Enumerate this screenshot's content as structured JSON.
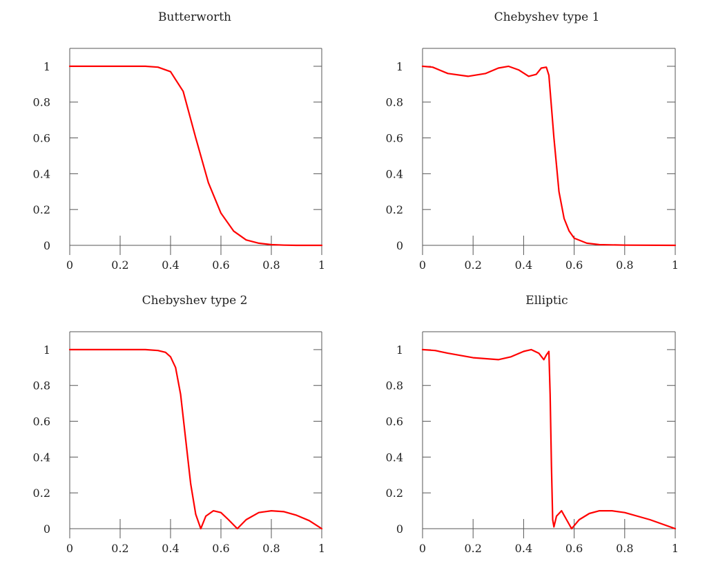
{
  "colors": {
    "line": "#ff0000",
    "axis": "#555555",
    "background": "#ffffff",
    "text": "#222222"
  },
  "chart_data": [
    {
      "type": "line",
      "title": "Butterworth",
      "xlabel": "",
      "ylabel": "",
      "xlim": [
        0,
        1
      ],
      "ylim": [
        0,
        1.1
      ],
      "xticks": [
        0,
        0.2,
        0.4,
        0.6,
        0.8,
        1
      ],
      "xtick_labels": [
        "0",
        "0.2",
        "0.4",
        "0.6",
        "0.8",
        "1"
      ],
      "yticks": [
        0,
        0.2,
        0.4,
        0.6,
        0.8,
        1
      ],
      "ytick_labels": [
        "0",
        "0.2",
        "0.4",
        "0.6",
        "0.8",
        "1"
      ],
      "grid": false,
      "series": [
        {
          "name": "Butterworth",
          "x": [
            0,
            0.1,
            0.2,
            0.3,
            0.35,
            0.4,
            0.45,
            0.5,
            0.55,
            0.6,
            0.65,
            0.7,
            0.75,
            0.8,
            0.85,
            0.9,
            1
          ],
          "y": [
            1,
            1,
            1,
            1,
            0.995,
            0.97,
            0.86,
            0.6,
            0.35,
            0.18,
            0.08,
            0.03,
            0.012,
            0.004,
            0.001,
            0,
            0
          ]
        }
      ]
    },
    {
      "type": "line",
      "title": "Chebyshev type 1",
      "xlabel": "",
      "ylabel": "",
      "xlim": [
        0,
        1
      ],
      "ylim": [
        0,
        1.1
      ],
      "xticks": [
        0,
        0.2,
        0.4,
        0.6,
        0.8,
        1
      ],
      "xtick_labels": [
        "0",
        "0.2",
        "0.4",
        "0.6",
        "0.8",
        "1"
      ],
      "yticks": [
        0,
        0.2,
        0.4,
        0.6,
        0.8,
        1
      ],
      "ytick_labels": [
        "0",
        "0.2",
        "0.4",
        "0.6",
        "0.8",
        "1"
      ],
      "grid": false,
      "series": [
        {
          "name": "Chebyshev type 1",
          "x": [
            0,
            0.04,
            0.1,
            0.18,
            0.25,
            0.3,
            0.34,
            0.38,
            0.42,
            0.45,
            0.47,
            0.49,
            0.5,
            0.52,
            0.54,
            0.56,
            0.58,
            0.6,
            0.65,
            0.7,
            0.8,
            1
          ],
          "y": [
            1,
            0.995,
            0.96,
            0.944,
            0.96,
            0.99,
            1.0,
            0.98,
            0.944,
            0.955,
            0.99,
            0.995,
            0.95,
            0.6,
            0.3,
            0.15,
            0.08,
            0.04,
            0.012,
            0.004,
            0.001,
            0
          ]
        }
      ]
    },
    {
      "type": "line",
      "title": "Chebyshev type 2",
      "xlabel": "",
      "ylabel": "",
      "xlim": [
        0,
        1
      ],
      "ylim": [
        0,
        1.1
      ],
      "xticks": [
        0,
        0.2,
        0.4,
        0.6,
        0.8,
        1
      ],
      "xtick_labels": [
        "0",
        "0.2",
        "0.4",
        "0.6",
        "0.8",
        "1"
      ],
      "yticks": [
        0,
        0.2,
        0.4,
        0.6,
        0.8,
        1
      ],
      "ytick_labels": [
        "0",
        "0.2",
        "0.4",
        "0.6",
        "0.8",
        "1"
      ],
      "grid": false,
      "series": [
        {
          "name": "Chebyshev type 2",
          "x": [
            0,
            0.1,
            0.2,
            0.3,
            0.35,
            0.38,
            0.4,
            0.42,
            0.44,
            0.46,
            0.48,
            0.5,
            0.52,
            0.54,
            0.57,
            0.6,
            0.63,
            0.665,
            0.7,
            0.75,
            0.8,
            0.85,
            0.9,
            0.95,
            1
          ],
          "y": [
            1,
            1,
            1,
            1,
            0.995,
            0.985,
            0.96,
            0.9,
            0.75,
            0.5,
            0.25,
            0.08,
            0,
            0.07,
            0.1,
            0.09,
            0.05,
            0,
            0.05,
            0.09,
            0.1,
            0.095,
            0.075,
            0.045,
            0
          ]
        }
      ]
    },
    {
      "type": "line",
      "title": "Elliptic",
      "xlabel": "",
      "ylabel": "",
      "xlim": [
        0,
        1
      ],
      "ylim": [
        0,
        1.1
      ],
      "xticks": [
        0,
        0.2,
        0.4,
        0.6,
        0.8,
        1
      ],
      "xtick_labels": [
        "0",
        "0.2",
        "0.4",
        "0.6",
        "0.8",
        "1"
      ],
      "yticks": [
        0,
        0.2,
        0.4,
        0.6,
        0.8,
        1
      ],
      "ytick_labels": [
        "0",
        "0.2",
        "0.4",
        "0.6",
        "0.8",
        "1"
      ],
      "grid": false,
      "series": [
        {
          "name": "Elliptic",
          "x": [
            0,
            0.05,
            0.1,
            0.2,
            0.3,
            0.35,
            0.4,
            0.43,
            0.46,
            0.48,
            0.49,
            0.5,
            0.505,
            0.51,
            0.515,
            0.52,
            0.53,
            0.55,
            0.57,
            0.59,
            0.62,
            0.66,
            0.7,
            0.75,
            0.8,
            0.9,
            1
          ],
          "y": [
            1,
            0.995,
            0.98,
            0.955,
            0.944,
            0.96,
            0.99,
            1.0,
            0.98,
            0.944,
            0.97,
            0.99,
            0.75,
            0.35,
            0.05,
            0.01,
            0.07,
            0.1,
            0.05,
            0,
            0.05,
            0.085,
            0.1,
            0.1,
            0.09,
            0.05,
            0
          ]
        }
      ]
    }
  ]
}
